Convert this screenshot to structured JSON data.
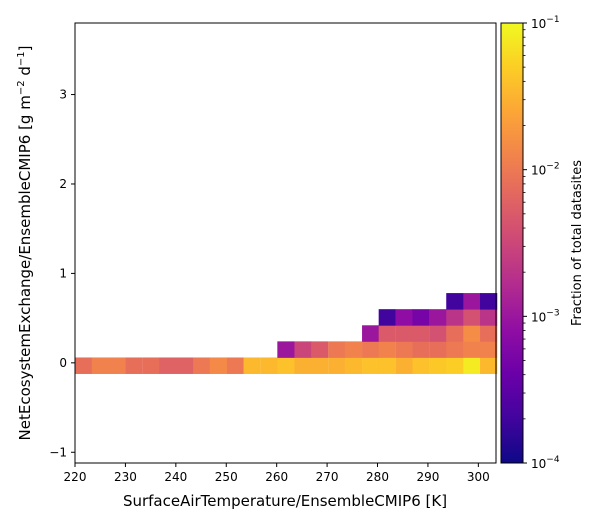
{
  "chart_data": {
    "type": "heatmap",
    "xlabel": "SurfaceAirTemperature/EnsembleCMIP6 [K]",
    "ylabel": "NetEcosystemExchange/EnsembleCMIP6 [g m",
    "ylabel_sup1": "−2",
    "ylabel_mid": " d",
    "ylabel_sup2": "−1",
    "ylabel_end": "]",
    "xlim": [
      220,
      303.5
    ],
    "ylim": [
      -1.12,
      3.8
    ],
    "xticks": [
      "220",
      "230",
      "240",
      "250",
      "260",
      "270",
      "280",
      "290",
      "300"
    ],
    "yticks": [
      "−1",
      "0",
      "1",
      "2",
      "3"
    ],
    "x_bin_width": 3.34,
    "y_bin_width": 0.18,
    "colorbar": {
      "label": "Fraction of total datasites",
      "scale": "log",
      "range": [
        0.0001,
        0.1
      ],
      "tick_base": "10",
      "tick_exponents": [
        "−4",
        "−3",
        "−2",
        "−1"
      ],
      "colormap": "plasma"
    },
    "cells": [
      {
        "x": 221.7,
        "y": -0.03,
        "v": 0.008
      },
      {
        "x": 225.0,
        "y": -0.03,
        "v": 0.012
      },
      {
        "x": 228.4,
        "y": -0.03,
        "v": 0.012
      },
      {
        "x": 231.7,
        "y": -0.03,
        "v": 0.008
      },
      {
        "x": 235.1,
        "y": -0.03,
        "v": 0.008
      },
      {
        "x": 238.4,
        "y": -0.03,
        "v": 0.006
      },
      {
        "x": 241.8,
        "y": -0.03,
        "v": 0.006
      },
      {
        "x": 245.1,
        "y": -0.03,
        "v": 0.01
      },
      {
        "x": 248.4,
        "y": -0.03,
        "v": 0.014
      },
      {
        "x": 251.8,
        "y": -0.03,
        "v": 0.01
      },
      {
        "x": 255.1,
        "y": -0.03,
        "v": 0.035
      },
      {
        "x": 258.5,
        "y": -0.03,
        "v": 0.035
      },
      {
        "x": 261.8,
        "y": -0.03,
        "v": 0.04
      },
      {
        "x": 265.2,
        "y": -0.03,
        "v": 0.03
      },
      {
        "x": 268.5,
        "y": -0.03,
        "v": 0.03
      },
      {
        "x": 271.9,
        "y": -0.03,
        "v": 0.03
      },
      {
        "x": 275.2,
        "y": -0.03,
        "v": 0.035
      },
      {
        "x": 278.6,
        "y": -0.03,
        "v": 0.04
      },
      {
        "x": 281.9,
        "y": -0.03,
        "v": 0.04
      },
      {
        "x": 285.3,
        "y": -0.03,
        "v": 0.03
      },
      {
        "x": 288.6,
        "y": -0.03,
        "v": 0.04
      },
      {
        "x": 292.0,
        "y": -0.03,
        "v": 0.045
      },
      {
        "x": 295.3,
        "y": -0.03,
        "v": 0.05
      },
      {
        "x": 298.7,
        "y": -0.03,
        "v": 0.08
      },
      {
        "x": 302.0,
        "y": -0.03,
        "v": 0.035
      },
      {
        "x": 261.8,
        "y": 0.15,
        "v": 0.001
      },
      {
        "x": 265.2,
        "y": 0.15,
        "v": 0.003
      },
      {
        "x": 268.5,
        "y": 0.15,
        "v": 0.005
      },
      {
        "x": 271.9,
        "y": 0.15,
        "v": 0.01
      },
      {
        "x": 275.2,
        "y": 0.15,
        "v": 0.012
      },
      {
        "x": 278.6,
        "y": 0.15,
        "v": 0.01
      },
      {
        "x": 281.9,
        "y": 0.15,
        "v": 0.012
      },
      {
        "x": 285.3,
        "y": 0.15,
        "v": 0.01
      },
      {
        "x": 288.6,
        "y": 0.15,
        "v": 0.008
      },
      {
        "x": 292.0,
        "y": 0.15,
        "v": 0.008
      },
      {
        "x": 295.3,
        "y": 0.15,
        "v": 0.01
      },
      {
        "x": 298.7,
        "y": 0.15,
        "v": 0.012
      },
      {
        "x": 302.0,
        "y": 0.15,
        "v": 0.012
      },
      {
        "x": 278.6,
        "y": 0.33,
        "v": 0.001
      },
      {
        "x": 281.9,
        "y": 0.33,
        "v": 0.005
      },
      {
        "x": 285.3,
        "y": 0.33,
        "v": 0.005
      },
      {
        "x": 288.6,
        "y": 0.33,
        "v": 0.005
      },
      {
        "x": 292.0,
        "y": 0.33,
        "v": 0.004
      },
      {
        "x": 295.3,
        "y": 0.33,
        "v": 0.008
      },
      {
        "x": 298.7,
        "y": 0.33,
        "v": 0.015
      },
      {
        "x": 302.0,
        "y": 0.33,
        "v": 0.008
      },
      {
        "x": 281.9,
        "y": 0.51,
        "v": 0.0002
      },
      {
        "x": 285.3,
        "y": 0.51,
        "v": 0.0008
      },
      {
        "x": 288.6,
        "y": 0.51,
        "v": 0.0005
      },
      {
        "x": 292.0,
        "y": 0.51,
        "v": 0.001
      },
      {
        "x": 295.3,
        "y": 0.51,
        "v": 0.002
      },
      {
        "x": 298.7,
        "y": 0.51,
        "v": 0.004
      },
      {
        "x": 302.0,
        "y": 0.51,
        "v": 0.002
      },
      {
        "x": 295.3,
        "y": 0.69,
        "v": 0.0002
      },
      {
        "x": 298.7,
        "y": 0.69,
        "v": 0.001
      },
      {
        "x": 302.0,
        "y": 0.69,
        "v": 0.0002
      }
    ]
  }
}
